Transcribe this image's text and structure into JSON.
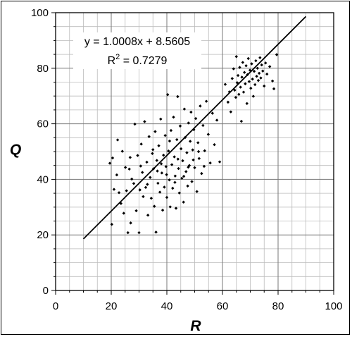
{
  "chart_data": {
    "type": "scatter",
    "title": "",
    "xlabel": "R",
    "ylabel": "Q",
    "xlim": [
      0,
      100
    ],
    "ylim": [
      0,
      100
    ],
    "x_ticks": [
      "0",
      "20",
      "40",
      "60",
      "80",
      "100"
    ],
    "y_ticks": [
      "0",
      "20",
      "40",
      "60",
      "80",
      "100"
    ],
    "grid": true,
    "minor_step": 5,
    "trendline": {
      "slope": 1.0008,
      "intercept": 8.5605,
      "x_range": [
        10,
        90
      ],
      "equation_label": "y = 1.0008x + 8.5605",
      "r2_prefix": "R",
      "r2_sup": "2",
      "r2_suffix": " = 0.7279"
    },
    "series": [
      {
        "points": [
          [
            19.5,
            45.8
          ],
          [
            20.2,
            23.8
          ],
          [
            20.5,
            47.7
          ],
          [
            21.0,
            36.4
          ],
          [
            22.3,
            54.2
          ],
          [
            22.8,
            35.2
          ],
          [
            23.5,
            31.3
          ],
          [
            24.0,
            50.1
          ],
          [
            24.5,
            27.8
          ],
          [
            25.1,
            44.3
          ],
          [
            25.5,
            35.9
          ],
          [
            26.0,
            20.8
          ],
          [
            26.5,
            43.7
          ],
          [
            27.0,
            24.3
          ],
          [
            27.4,
            40.1
          ],
          [
            28.1,
            38.5
          ],
          [
            28.5,
            59.9
          ],
          [
            29.0,
            28.7
          ],
          [
            29.5,
            48.6
          ],
          [
            30.0,
            20.8
          ],
          [
            30.3,
            36.2
          ],
          [
            30.8,
            52.7
          ],
          [
            31.2,
            42.5
          ],
          [
            31.5,
            33.8
          ],
          [
            32.0,
            60.8
          ],
          [
            32.4,
            37.1
          ],
          [
            32.8,
            46.2
          ],
          [
            33.2,
            27.1
          ],
          [
            33.6,
            55.4
          ],
          [
            34.0,
            40.7
          ],
          [
            34.4,
            33.2
          ],
          [
            34.8,
            49.3
          ],
          [
            35.2,
            43.8
          ],
          [
            35.5,
            30.3
          ],
          [
            35.8,
            57.2
          ],
          [
            36.1,
            21.0
          ],
          [
            36.4,
            46.8
          ],
          [
            36.8,
            38.6
          ],
          [
            37.1,
            52.1
          ],
          [
            37.5,
            35.4
          ],
          [
            37.8,
            61.7
          ],
          [
            38.2,
            42.3
          ],
          [
            38.5,
            28.9
          ],
          [
            38.8,
            48.7
          ],
          [
            39.1,
            37.2
          ],
          [
            39.4,
            55.8
          ],
          [
            39.7,
            44.6
          ],
          [
            40.0,
            33.5
          ],
          [
            40.3,
            70.5
          ],
          [
            40.6,
            50.2
          ],
          [
            40.9,
            39.8
          ],
          [
            41.2,
            30.1
          ],
          [
            41.5,
            57.6
          ],
          [
            41.8,
            45.3
          ],
          [
            42.1,
            36.8
          ],
          [
            42.4,
            62.4
          ],
          [
            42.7,
            48.1
          ],
          [
            43.0,
            41.2
          ],
          [
            43.3,
            29.6
          ],
          [
            43.6,
            54.3
          ],
          [
            43.9,
            69.8
          ],
          [
            44.2,
            43.9
          ],
          [
            44.5,
            35.1
          ],
          [
            44.8,
            59.2
          ],
          [
            45.1,
            51.0
          ],
          [
            45.4,
            40.4
          ],
          [
            45.7,
            46.7
          ],
          [
            46.0,
            31.8
          ],
          [
            46.3,
            65.3
          ],
          [
            46.6,
            55.1
          ],
          [
            46.9,
            42.8
          ],
          [
            47.2,
            49.6
          ],
          [
            47.5,
            37.6
          ],
          [
            47.8,
            60.3
          ],
          [
            48.1,
            45.0
          ],
          [
            48.4,
            53.7
          ],
          [
            48.7,
            64.2
          ],
          [
            49.0,
            39.2
          ],
          [
            49.3,
            50.6
          ],
          [
            49.7,
            57.9
          ],
          [
            50.0,
            44.2
          ],
          [
            50.4,
            61.9
          ],
          [
            50.8,
            35.6
          ],
          [
            51.2,
            53.2
          ],
          [
            51.6,
            47.5
          ],
          [
            52.0,
            66.4
          ],
          [
            52.5,
            42.1
          ],
          [
            53.0,
            59.4
          ],
          [
            53.6,
            50.3
          ],
          [
            54.2,
            68.1
          ],
          [
            54.9,
            56.2
          ],
          [
            55.6,
            45.9
          ],
          [
            56.4,
            63.8
          ],
          [
            57.1,
            52.5
          ],
          [
            58.0,
            61.3
          ],
          [
            59.0,
            46.3
          ],
          [
            22.0,
            41.6
          ],
          [
            26.8,
            47.9
          ],
          [
            30.6,
            44.8
          ],
          [
            33.0,
            38.2
          ],
          [
            35.0,
            50.7
          ],
          [
            36.6,
            43.0
          ],
          [
            38.0,
            45.6
          ],
          [
            39.9,
            41.7
          ],
          [
            41.0,
            53.8
          ],
          [
            42.9,
            38.9
          ],
          [
            44.0,
            47.3
          ],
          [
            46.1,
            41.1
          ],
          [
            47.7,
            44.4
          ],
          [
            49.5,
            47.0
          ],
          [
            51.4,
            50.0
          ],
          [
            53.4,
            44.7
          ],
          [
            61.0,
            74.2
          ],
          [
            62.0,
            67.8
          ],
          [
            62.5,
            71.5
          ],
          [
            63.0,
            64.3
          ],
          [
            63.5,
            76.3
          ],
          [
            64.0,
            79.8
          ],
          [
            64.4,
            72.1
          ],
          [
            64.8,
            69.5
          ],
          [
            65.0,
            84.2
          ],
          [
            65.3,
            74.8
          ],
          [
            65.6,
            77.4
          ],
          [
            65.9,
            70.6
          ],
          [
            66.2,
            80.3
          ],
          [
            66.5,
            73.2
          ],
          [
            66.8,
            60.9
          ],
          [
            67.0,
            76.8
          ],
          [
            67.3,
            82.1
          ],
          [
            67.6,
            71.4
          ],
          [
            67.9,
            78.5
          ],
          [
            68.2,
            74.4
          ],
          [
            68.5,
            80.9
          ],
          [
            68.8,
            67.3
          ],
          [
            69.0,
            77.7
          ],
          [
            69.3,
            83.5
          ],
          [
            69.6,
            75.2
          ],
          [
            69.9,
            79.3
          ],
          [
            70.2,
            72.8
          ],
          [
            70.5,
            81.6
          ],
          [
            70.8,
            76.1
          ],
          [
            71.1,
            69.9
          ],
          [
            71.4,
            78.9
          ],
          [
            71.7,
            74.1
          ],
          [
            72.0,
            82.7
          ],
          [
            72.3,
            77.1
          ],
          [
            72.6,
            80.0
          ],
          [
            72.9,
            75.6
          ],
          [
            73.2,
            78.2
          ],
          [
            73.5,
            83.8
          ],
          [
            73.8,
            76.5
          ],
          [
            74.1,
            81.2
          ],
          [
            74.5,
            79.0
          ],
          [
            75.0,
            73.6
          ],
          [
            75.5,
            81.9
          ],
          [
            76.0,
            77.9
          ],
          [
            77.0,
            80.6
          ],
          [
            78.0,
            75.4
          ],
          [
            78.5,
            72.6
          ],
          [
            79.5,
            84.9
          ]
        ]
      }
    ]
  }
}
